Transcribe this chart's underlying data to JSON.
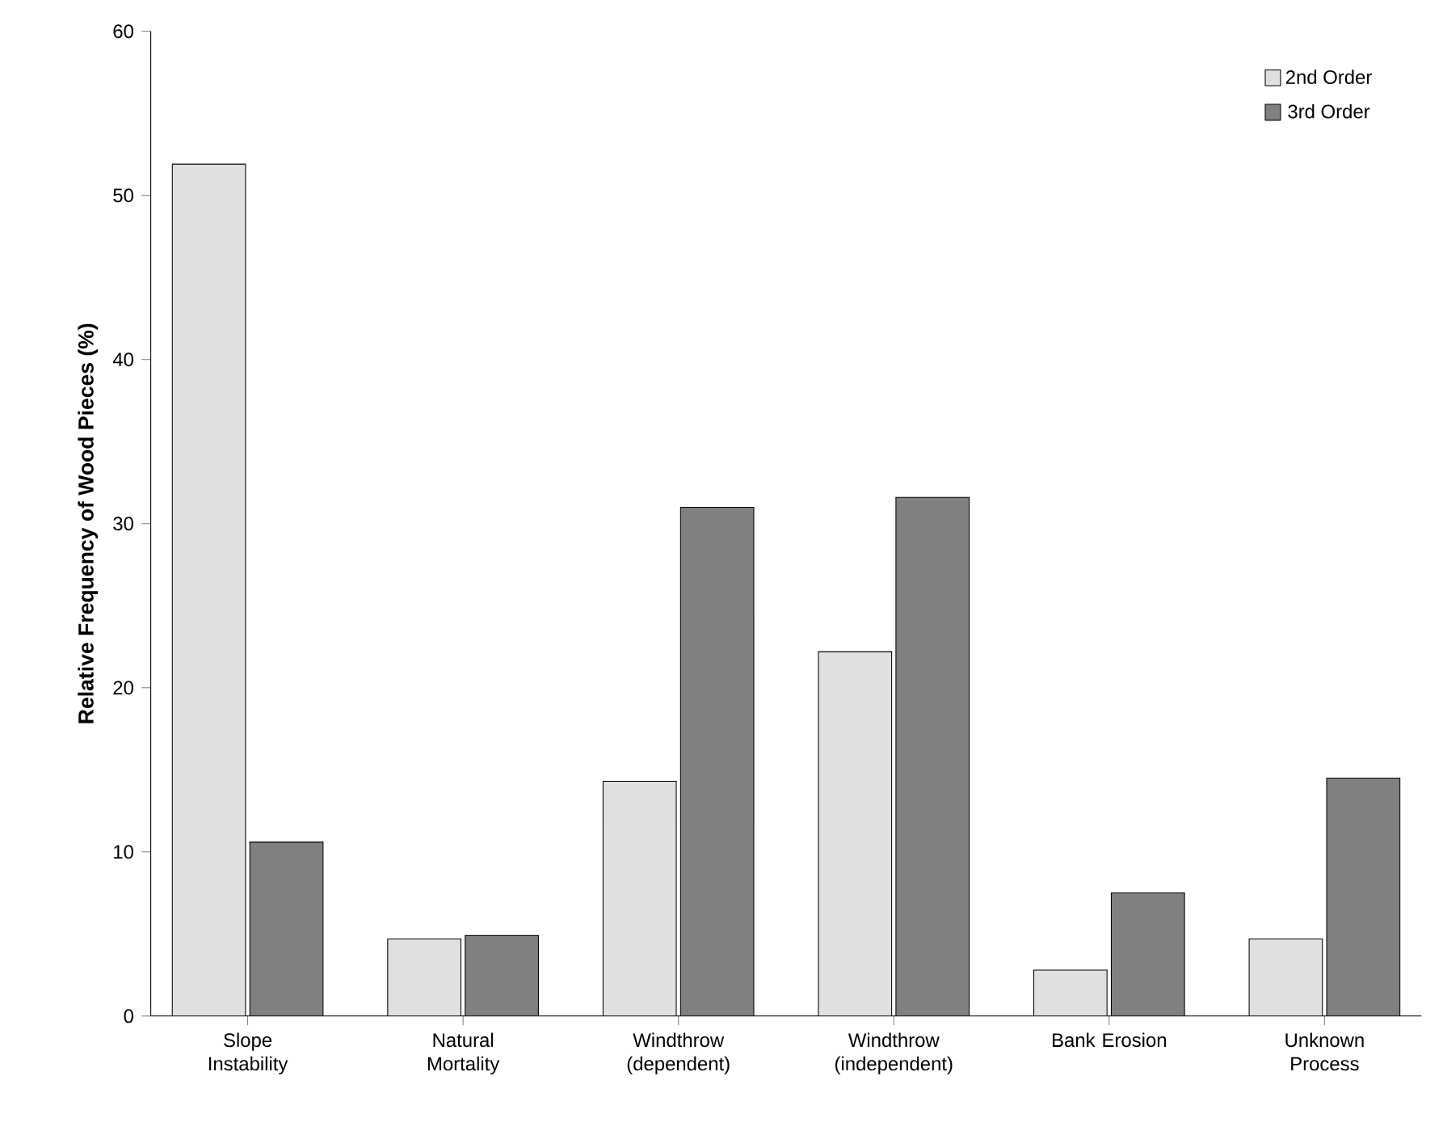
{
  "chart_data": {
    "type": "bar",
    "ylabel": "Relative Frequency of Wood Pieces (%)",
    "categories": [
      "Slope Instability",
      "Natural Mortality",
      "Windthrow (dependent)",
      "Windthrow (independent)",
      "Bank Erosion",
      "Unknown Process"
    ],
    "series": [
      {
        "name": "2nd Order",
        "color": "#e0e0e0",
        "values": [
          51.9,
          4.7,
          14.3,
          22.2,
          2.8,
          4.7
        ]
      },
      {
        "name": "3rd Order",
        "color": "#808080",
        "values": [
          10.6,
          4.9,
          31.0,
          31.6,
          7.5,
          14.5
        ]
      }
    ],
    "ylim": [
      0,
      60
    ],
    "yticks": [
      0,
      10,
      20,
      30,
      40,
      50,
      60
    ],
    "grid": false,
    "legend": "top right"
  }
}
